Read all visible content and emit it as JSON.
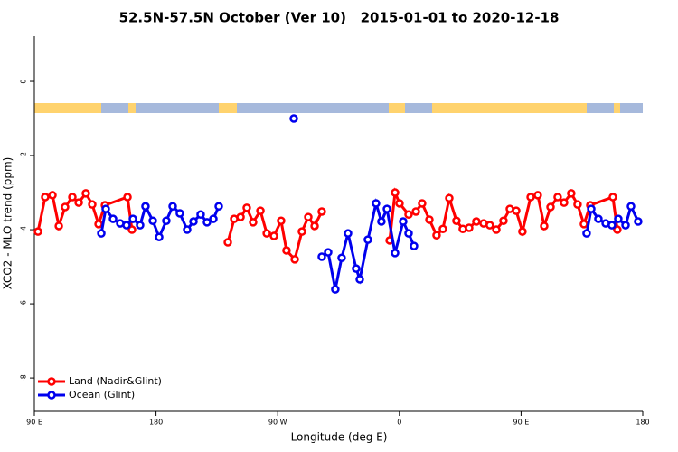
{
  "chart_data": {
    "type": "line",
    "title": "52.5N-57.5N October (Ver 10)   2015-01-01 to 2020-12-18",
    "xlabel": "Longitude (deg E)",
    "ylabel": "XCO2 - MLO trend (ppm)",
    "xlim": [
      90,
      540
    ],
    "xticks": [
      {
        "value": 90,
        "label": "90 E"
      },
      180,
      {
        "value": 270,
        "label": "90 W"
      },
      {
        "value": 360,
        "label": "0"
      },
      {
        "value": 450,
        "label": "90 E"
      },
      {
        "value": 540,
        "label": "180"
      }
    ],
    "ylim": [
      -8.9,
      1.22
    ],
    "yticks": [
      0,
      -2,
      -4,
      -6,
      -8
    ],
    "legend": "bottom-left",
    "series": [
      {
        "name": "Land (Nadir&Glint)",
        "color": "#ff0000",
        "x": [
          92.7,
          98.0,
          103.4,
          108.1,
          112.7,
          118.1,
          122.8,
          128.1,
          132.8,
          137.5,
          142.2,
          158.9,
          162.2,
          null,
          233.1,
          237.8,
          242.5,
          247.1,
          251.8,
          257.2,
          261.9,
          267.2,
          272.5,
          276.5,
          282.6,
          287.9,
          292.6,
          297.3,
          302.6,
          null,
          352.8,
          356.8,
          360.1,
          366.8,
          372.2,
          376.8,
          382.2,
          387.5,
          392.2,
          396.9,
          402.2,
          406.9,
          411.6,
          416.9,
          422.3,
          426.9,
          431.7,
          437.0,
          441.7,
          446.4,
          451.0,
          457.1,
          462.4,
          467.1,
          471.8,
          477.1,
          481.8,
          487.1,
          491.8,
          496.5,
          501.2,
          517.9,
          521.2
        ],
        "values": [
          -4.05,
          -3.12,
          -3.07,
          -3.9,
          -3.39,
          -3.12,
          -3.27,
          -3.02,
          -3.32,
          -3.85,
          -3.34,
          -3.12,
          -4.0,
          null,
          -4.34,
          -3.71,
          -3.66,
          -3.41,
          -3.8,
          -3.49,
          -4.1,
          -4.17,
          -3.76,
          -4.56,
          -4.8,
          -4.05,
          -3.66,
          -3.9,
          -3.51,
          null,
          -4.29,
          -3.0,
          -3.29,
          -3.59,
          -3.51,
          -3.29,
          -3.73,
          -4.15,
          -3.98,
          -3.15,
          -3.76,
          -3.98,
          -3.95,
          -3.78,
          -3.83,
          -3.88,
          -4.0,
          -3.76,
          -3.44,
          -3.49,
          -4.05,
          -3.12,
          -3.07,
          -3.9,
          -3.39,
          -3.12,
          -3.27,
          -3.02,
          -3.32,
          -3.85,
          -3.34,
          -3.12,
          -4.0
        ]
      },
      {
        "name": "Ocean (Glint)",
        "color": "#0000ee",
        "x": [
          139.5,
          142.8,
          148.2,
          153.5,
          158.2,
          162.9,
          168.2,
          172.2,
          177.6,
          182.3,
          187.6,
          192.3,
          197.6,
          203.0,
          207.7,
          213.0,
          217.7,
          222.4,
          226.4,
          null,
          281.9,
          null,
          302.6,
          307.3,
          312.6,
          317.3,
          322.0,
          328.0,
          330.7,
          336.7,
          342.7,
          346.7,
          350.8,
          356.8,
          362.8,
          366.8,
          370.8,
          null,
          498.5,
          501.9,
          507.2,
          512.6,
          517.2,
          521.9,
          527.3,
          531.3,
          536.6
        ],
        "values": [
          -4.1,
          -3.44,
          -3.71,
          -3.83,
          -3.88,
          -3.71,
          -3.88,
          -3.37,
          -3.76,
          -4.2,
          -3.76,
          -3.37,
          -3.56,
          -4.0,
          -3.78,
          -3.59,
          -3.8,
          -3.71,
          -3.37,
          null,
          -1.0,
          null,
          -4.73,
          -4.61,
          -5.61,
          -4.76,
          -4.1,
          -5.05,
          -5.34,
          -4.27,
          -3.29,
          -3.78,
          -3.44,
          -4.63,
          -3.78,
          -4.1,
          -4.44,
          null,
          -4.1,
          -3.44,
          -3.71,
          -3.83,
          -3.88,
          -3.71,
          -3.88,
          -3.37,
          -3.78
        ]
      }
    ]
  }
}
